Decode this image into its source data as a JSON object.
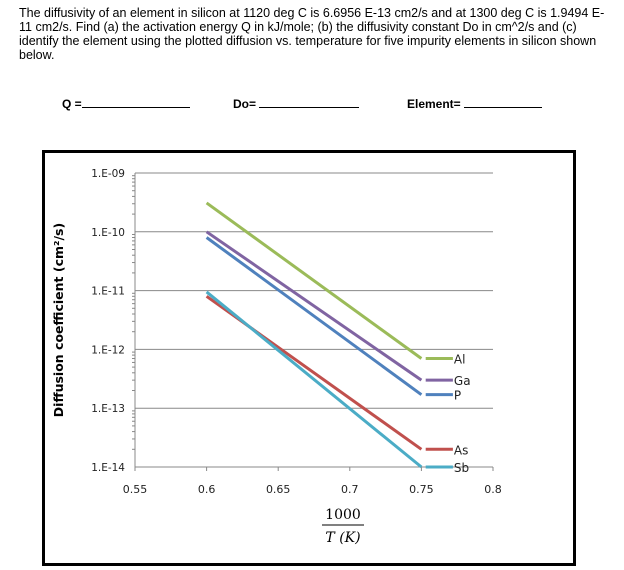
{
  "question": "The diffusivity of an element in silicon at 1120 deg C is 6.6956 E-13 cm2/s and at 1300 deg C is 1.9494 E-11 cm2/s. Find (a) the activation energy Q in kJ/mole; (b)  the diffusivity constant Do in cm^2/s and (c) identify the element using the plotted diffusion vs. temperature for five impurity elements in silicon shown below.",
  "answers": {
    "q_label": "Q =",
    "do_label": "Do=",
    "element_label": "Element="
  },
  "chart_data": {
    "type": "line",
    "title": "",
    "xlabel_num": "1000",
    "xlabel_den": "T (K)",
    "ylabel": "Diffusion coefficient (cm²/s)",
    "xlim": [
      0.55,
      0.8
    ],
    "ylim": [
      1e-14,
      1e-09
    ],
    "yscale": "log",
    "grid": "horizontal",
    "xticks": [
      "0.55",
      "0.6",
      "0.65",
      "0.7",
      "0.75",
      "0.8"
    ],
    "yticks": [
      "1.E-09",
      "1.E-10",
      "1.E-11",
      "1.E-12",
      "1.E-13",
      "1.E-14"
    ],
    "legend": "right, labels at line ends",
    "series": [
      {
        "name": "Al",
        "color": "#9bbb59",
        "x": [
          0.6,
          0.75
        ],
        "y": [
          3.1e-10,
          7e-13
        ]
      },
      {
        "name": "Ga",
        "color": "#8064a2",
        "x": [
          0.6,
          0.75
        ],
        "y": [
          1e-10,
          3e-13
        ]
      },
      {
        "name": "P",
        "color": "#4f81bd",
        "x": [
          0.6,
          0.75
        ],
        "y": [
          8e-11,
          1.7e-13
        ]
      },
      {
        "name": "As",
        "color": "#c0504d",
        "x": [
          0.6,
          0.75
        ],
        "y": [
          8e-12,
          2e-14
        ]
      },
      {
        "name": "Sb",
        "color": "#4bacc6",
        "x": [
          0.6,
          0.75
        ],
        "y": [
          9.5e-12,
          1e-14
        ]
      }
    ]
  }
}
